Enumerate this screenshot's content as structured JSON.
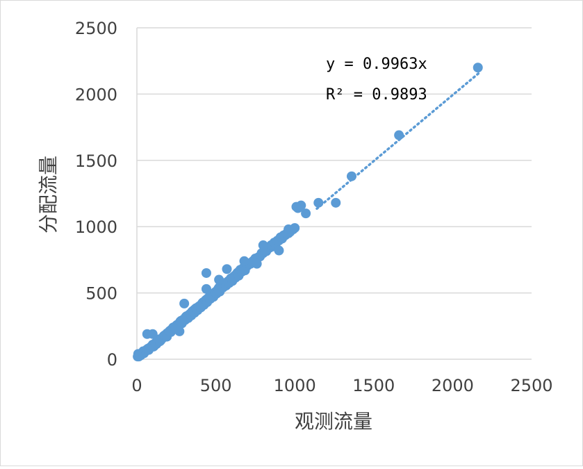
{
  "colors": {
    "marker": "#5b9bd5",
    "grid": "#d9d9d9",
    "text": "#404040"
  },
  "chart_data": {
    "type": "scatter",
    "xlabel": "观测流量",
    "ylabel": "分配流量",
    "xlim": [
      0,
      2500
    ],
    "ylim": [
      0,
      2500
    ],
    "x_ticks": [
      "0",
      "500",
      "1000",
      "1500",
      "2000",
      "2500"
    ],
    "y_ticks": [
      "0",
      "500",
      "1000",
      "1500",
      "2000",
      "2500"
    ],
    "grid": "horizontal",
    "legend": "none",
    "trendline": {
      "type": "linear-through-origin",
      "slope": 0.9963,
      "style": "dotted",
      "x_range": [
        1140,
        2165
      ]
    },
    "annotations": {
      "equation": "y = 0.9963x",
      "r_squared": "R² = 0.9893"
    },
    "series": [
      {
        "x": [
          5,
          10,
          15,
          20,
          25,
          30,
          40,
          50,
          60,
          70,
          80,
          90,
          100,
          110,
          120,
          130,
          140,
          150,
          160,
          170,
          180,
          190,
          200,
          210,
          220,
          230,
          240,
          250,
          260,
          270,
          280,
          290,
          300,
          310,
          320,
          330,
          340,
          350,
          360,
          370,
          380,
          390,
          400,
          410,
          420,
          430,
          440,
          450,
          460,
          470,
          480,
          490,
          500,
          510,
          520,
          530,
          540,
          550,
          560,
          570,
          580,
          590,
          600,
          610,
          620,
          630,
          640,
          650,
          660,
          670,
          680,
          690,
          700,
          720,
          740,
          760,
          780,
          800,
          820,
          840,
          860,
          880,
          900,
          920,
          940,
          960,
          980,
          1000,
          8,
          12,
          18,
          35,
          45,
          55,
          65,
          75,
          85,
          95,
          105,
          115,
          125,
          135,
          145,
          160,
          175,
          190,
          205,
          215,
          235,
          245,
          255,
          265,
          275,
          285,
          295,
          305,
          315,
          325,
          335,
          345,
          355,
          365,
          375,
          385,
          395,
          405,
          415,
          425,
          435,
          445,
          455,
          465,
          475,
          485,
          495,
          505,
          515,
          525,
          535,
          545,
          555,
          565,
          575,
          585,
          595,
          605,
          615,
          625,
          635,
          645,
          655,
          665,
          675,
          685,
          710,
          730,
          750,
          770,
          790,
          810,
          830,
          850,
          870,
          890,
          910,
          930,
          950,
          970,
          990,
          65,
          100,
          270,
          300,
          520,
          440,
          570,
          800,
          1020,
          1040,
          1070,
          1150,
          1010,
          960,
          900,
          760,
          440,
          680,
          1260,
          1360,
          1660,
          2160
        ],
        "y": [
          20,
          35,
          25,
          40,
          30,
          45,
          60,
          55,
          70,
          80,
          85,
          95,
          110,
          100,
          125,
          130,
          150,
          140,
          160,
          175,
          180,
          195,
          200,
          215,
          225,
          240,
          235,
          255,
          250,
          270,
          290,
          285,
          300,
          320,
          310,
          335,
          345,
          360,
          370,
          380,
          375,
          395,
          400,
          415,
          430,
          420,
          450,
          460,
          470,
          480,
          470,
          500,
          510,
          520,
          540,
          530,
          550,
          560,
          575,
          580,
          590,
          600,
          610,
          620,
          630,
          640,
          655,
          650,
          670,
          680,
          690,
          700,
          705,
          720,
          745,
          760,
          775,
          800,
          815,
          840,
          850,
          870,
          895,
          910,
          935,
          950,
          975,
          990,
          40,
          20,
          30,
          50,
          45,
          65,
          75,
          70,
          90,
          100,
          95,
          120,
          115,
          140,
          135,
          155,
          180,
          170,
          210,
          205,
          240,
          230,
          260,
          250,
          285,
          270,
          300,
          295,
          325,
          310,
          340,
          330,
          355,
          350,
          385,
          370,
          400,
          390,
          425,
          410,
          445,
          430,
          465,
          455,
          490,
          470,
          505,
          495,
          530,
          510,
          550,
          540,
          570,
          555,
          585,
          575,
          610,
          590,
          625,
          615,
          650,
          630,
          675,
          660,
          690,
          670,
          720,
          735,
          760,
          770,
          800,
          820,
          835,
          860,
          880,
          895,
          920,
          935,
          950,
          960,
          980,
          190,
          190,
          210,
          420,
          600,
          530,
          680,
          860,
          1140,
          1160,
          1100,
          1180,
          1150,
          980,
          820,
          720,
          650,
          740,
          1180,
          1380,
          1690,
          2200
        ]
      }
    ]
  }
}
